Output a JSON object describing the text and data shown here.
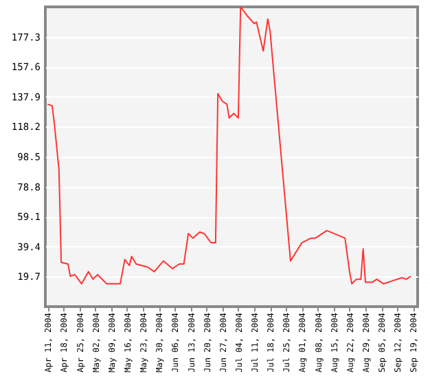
{
  "chart_data": {
    "type": "line",
    "x": [
      "2004-04-11",
      "2004-04-13",
      "2004-04-14",
      "2004-04-16",
      "2004-04-17",
      "2004-04-20",
      "2004-04-21",
      "2004-04-23",
      "2004-04-26",
      "2004-04-29",
      "2004-05-01",
      "2004-05-03",
      "2004-05-07",
      "2004-05-13",
      "2004-05-15",
      "2004-05-17",
      "2004-05-18",
      "2004-05-20",
      "2004-05-25",
      "2004-05-28",
      "2004-06-01",
      "2004-06-05",
      "2004-06-08",
      "2004-06-10",
      "2004-06-12",
      "2004-06-14",
      "2004-06-17",
      "2004-06-19",
      "2004-06-22",
      "2004-06-24",
      "2004-06-25",
      "2004-06-27",
      "2004-06-29",
      "2004-06-30",
      "2004-07-02",
      "2004-07-04",
      "2004-07-05",
      "2004-07-08",
      "2004-07-11",
      "2004-07-12",
      "2004-07-15",
      "2004-07-17",
      "2004-07-18",
      "2004-07-27",
      "2004-08-01",
      "2004-08-05",
      "2004-08-07",
      "2004-08-12",
      "2004-08-20",
      "2004-08-22",
      "2004-08-23",
      "2004-08-25",
      "2004-08-27",
      "2004-08-28",
      "2004-08-29",
      "2004-09-01",
      "2004-09-03",
      "2004-09-06",
      "2004-09-10",
      "2004-09-14",
      "2004-09-16",
      "2004-09-18"
    ],
    "series": [
      {
        "color": "#ff3333",
        "values": [
          133,
          132,
          120,
          90,
          29,
          28,
          20,
          21,
          15,
          23,
          18,
          21,
          15,
          15,
          31,
          27,
          33,
          28,
          26,
          23,
          30,
          25,
          28,
          28,
          48,
          45,
          49,
          48,
          42,
          42,
          140,
          135,
          133,
          124,
          127,
          124,
          197,
          191,
          186,
          187,
          168,
          189,
          181,
          30,
          42,
          45,
          45,
          50,
          45,
          23,
          15,
          18,
          18,
          38,
          16,
          16,
          18,
          15,
          17,
          19,
          18,
          20
        ]
      }
    ],
    "xlim": [
      "2004-04-10",
      "2004-09-21"
    ],
    "xticks": [
      {
        "value": "2004-04-11",
        "label": "Apr 11, 2004"
      },
      {
        "value": "2004-04-18",
        "label": "Apr 18, 2004"
      },
      {
        "value": "2004-04-25",
        "label": "Apr 25, 2004"
      },
      {
        "value": "2004-05-02",
        "label": "May 02, 2004"
      },
      {
        "value": "2004-05-09",
        "label": "May 09, 2004"
      },
      {
        "value": "2004-05-16",
        "label": "May 16, 2004"
      },
      {
        "value": "2004-05-23",
        "label": "May 23, 2004"
      },
      {
        "value": "2004-05-30",
        "label": "May 30, 2004"
      },
      {
        "value": "2004-06-06",
        "label": "Jun 06, 2004"
      },
      {
        "value": "2004-06-13",
        "label": "Jun 13, 2004"
      },
      {
        "value": "2004-06-20",
        "label": "Jun 20, 2004"
      },
      {
        "value": "2004-06-27",
        "label": "Jun 27, 2004"
      },
      {
        "value": "2004-07-04",
        "label": "Jul 04, 2004"
      },
      {
        "value": "2004-07-11",
        "label": "Jul 11, 2004"
      },
      {
        "value": "2004-07-18",
        "label": "Jul 18, 2004"
      },
      {
        "value": "2004-07-25",
        "label": "Jul 25, 2004"
      },
      {
        "value": "2004-08-01",
        "label": "Aug 01, 2004"
      },
      {
        "value": "2004-08-08",
        "label": "Aug 08, 2004"
      },
      {
        "value": "2004-08-15",
        "label": "Aug 15, 2004"
      },
      {
        "value": "2004-08-22",
        "label": "Aug 22, 2004"
      },
      {
        "value": "2004-08-29",
        "label": "Aug 29, 2004"
      },
      {
        "value": "2004-09-05",
        "label": "Sep 05, 2004"
      },
      {
        "value": "2004-09-12",
        "label": "Sep 12, 2004"
      },
      {
        "value": "2004-09-19",
        "label": "Sep 19, 2004"
      }
    ],
    "ylim": [
      0,
      197
    ],
    "yticks": [
      19.7,
      39.4,
      59.1,
      78.8,
      98.5,
      118.2,
      137.9,
      157.6,
      177.3
    ],
    "grid": "y"
  }
}
